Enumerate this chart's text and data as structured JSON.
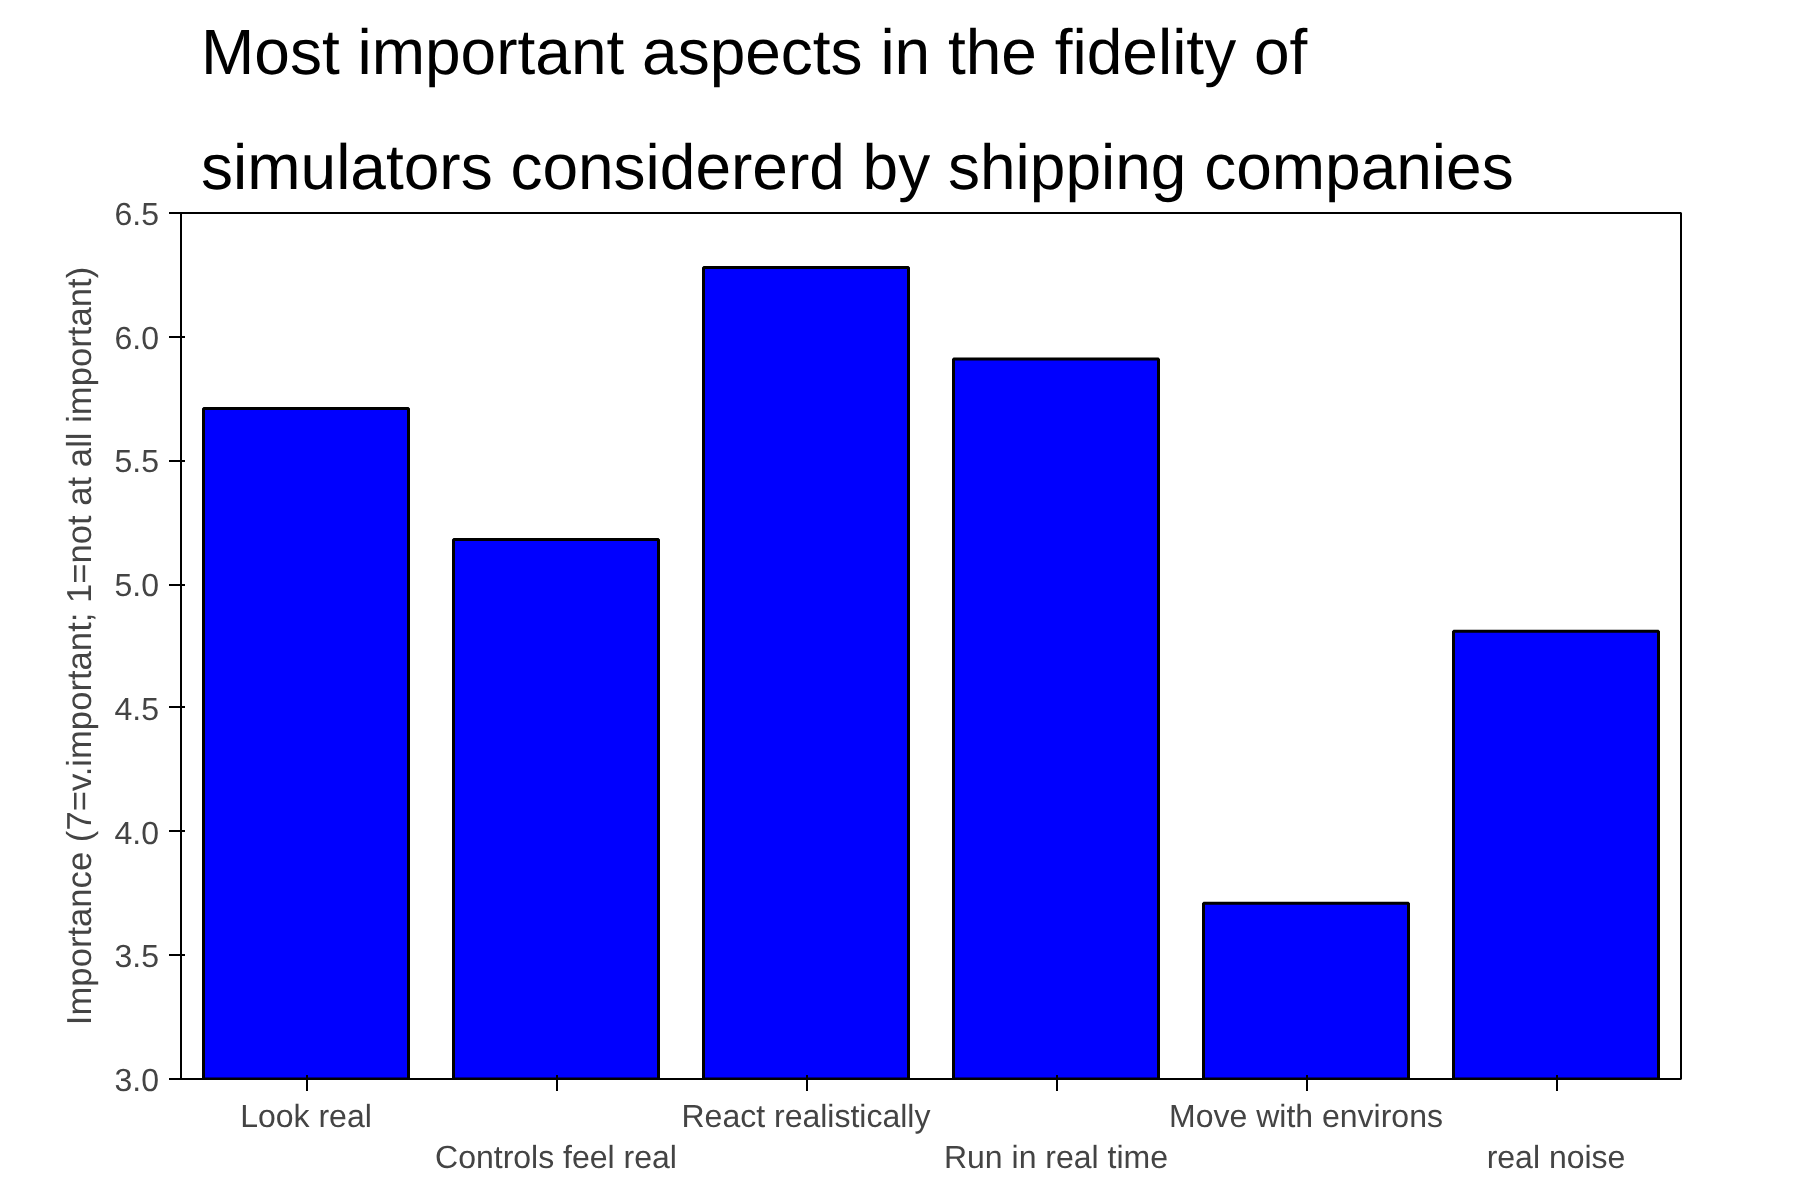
{
  "chart_data": {
    "type": "bar",
    "title": "Most important aspects in the fidelity of\nsimulators considererd by shipping companies",
    "ylabel": "Importance (7=v.important; 1=not at all important)",
    "categories": [
      "Look real",
      "Controls feel real",
      "React realistically",
      "Run in real time",
      "Move with environs",
      "real noise"
    ],
    "values": [
      5.71,
      5.18,
      6.28,
      5.91,
      3.71,
      4.81
    ],
    "color": "#0000ff",
    "ylim": [
      3.0,
      6.5
    ],
    "yticks": [
      {
        "value": 3,
        "label": "3.0"
      },
      {
        "value": 3.5,
        "label": "3.5"
      },
      {
        "value": 4,
        "label": "4.0"
      },
      {
        "value": 4.5,
        "label": "4.5"
      },
      {
        "value": 5,
        "label": "5.0"
      },
      {
        "value": 5.5,
        "label": "5.5"
      },
      {
        "value": 6,
        "label": "6.0"
      },
      {
        "value": 6.5,
        "label": "6.5"
      }
    ],
    "grid": false
  }
}
